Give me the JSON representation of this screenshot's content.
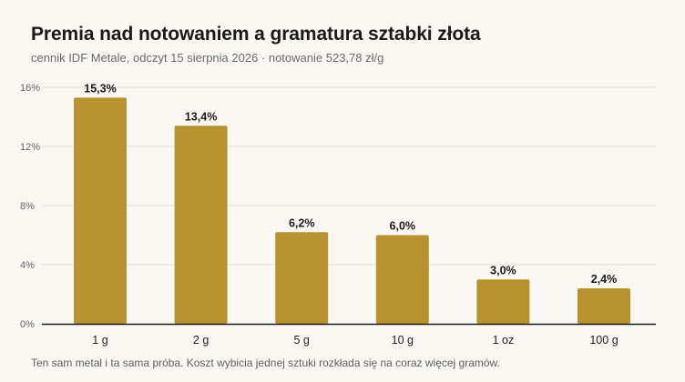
{
  "title": "Premia nad notowaniem a gramatura sztabki złota",
  "subtitle": "cennik IDF Metale, odczyt 15 sierpnia 2026 · notowanie 523,78 zł/g",
  "footnote": "Ten sam metal i ta sama próba. Koszt wybicia jednej sztuki rozkłada się na coraz więcej gramów.",
  "colors": {
    "bar": "#b8922f",
    "grid": "#e4e1da",
    "axis": "#1a1a1a",
    "background": "#faf8f3"
  },
  "chart_data": {
    "type": "bar",
    "title": "Premia nad notowaniem a gramatura sztabki złota",
    "subtitle": "cennik IDF Metale, odczyt 15 sierpnia 2026 · notowanie 523,78 zł/g",
    "xlabel": "",
    "ylabel": "",
    "categories": [
      "1 g",
      "2 g",
      "5 g",
      "10 g",
      "1 oz",
      "100 g"
    ],
    "values": [
      15.3,
      13.4,
      6.2,
      6.0,
      3.0,
      2.4
    ],
    "value_labels": [
      "15,3%",
      "13,4%",
      "6,2%",
      "6,0%",
      "3,0%",
      "2,4%"
    ],
    "ylim": [
      0,
      16
    ],
    "yticks": [
      0,
      4,
      8,
      12,
      16
    ],
    "ytick_labels": [
      "0%",
      "4%",
      "8%",
      "12%",
      "16%"
    ],
    "grid": true,
    "legend": "none"
  }
}
